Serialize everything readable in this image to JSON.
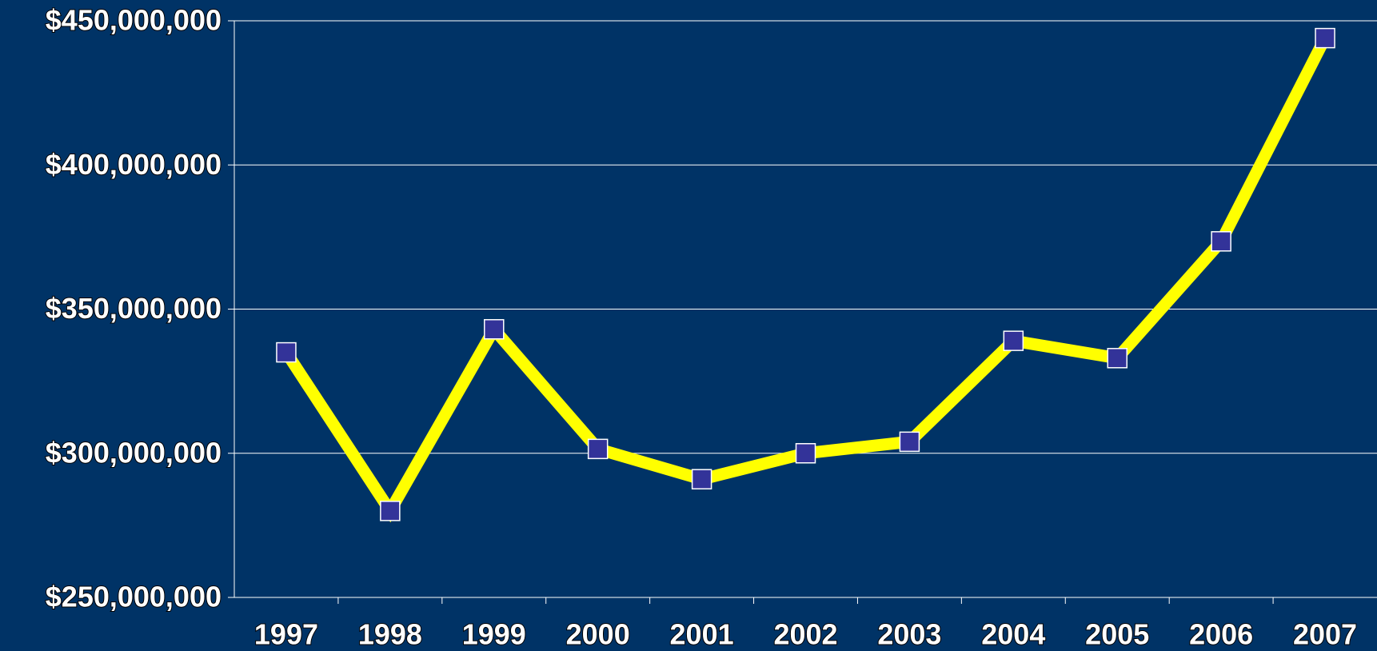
{
  "chart_data": {
    "type": "line",
    "categories": [
      "1997",
      "1998",
      "1999",
      "2000",
      "2001",
      "2002",
      "2003",
      "2004",
      "2005",
      "2006",
      "2007"
    ],
    "series": [
      {
        "color": "#ffff00",
        "marker_color": "#333399",
        "values": [
          335000000,
          280000000,
          343000000,
          301500000,
          291000000,
          300000000,
          304000000,
          339000000,
          333000000,
          373500000,
          444000000
        ]
      }
    ],
    "ylim": [
      250000000,
      450000000
    ],
    "yticks": [
      {
        "value": 250000000,
        "label": "$250,000,000"
      },
      {
        "value": 300000000,
        "label": "$300,000,000"
      },
      {
        "value": 350000000,
        "label": "$350,000,000"
      },
      {
        "value": 400000000,
        "label": "$400,000,000"
      },
      {
        "value": 450000000,
        "label": "$450,000,000"
      }
    ],
    "grid": true
  }
}
